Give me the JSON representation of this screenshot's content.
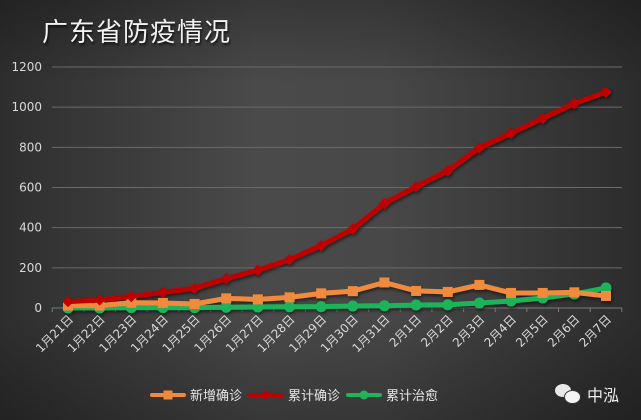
{
  "title": "广东省防疫情况",
  "watermark": {
    "icon": "wechat-icon",
    "text": "中泓"
  },
  "colors": {
    "new_confirmed": "#f08a3c",
    "total_confirmed": "#c00000",
    "total_recovered": "#1fb35a",
    "grid": "#6a6a6a",
    "text": "#d9d9d9"
  },
  "legend": [
    {
      "label": "新增确诊",
      "color": "#f08a3c",
      "marker": "square"
    },
    {
      "label": "累计确诊",
      "color": "#c00000",
      "marker": "diamond"
    },
    {
      "label": "累计治愈",
      "color": "#1fb35a",
      "marker": "circle"
    }
  ],
  "chart_data": {
    "type": "line",
    "title": "广东省防疫情况",
    "xlabel": "",
    "ylabel": "",
    "ylim": [
      0,
      1200
    ],
    "yticks": [
      0,
      200,
      400,
      600,
      800,
      1000,
      1200
    ],
    "grid": true,
    "legend_position": "bottom",
    "categories": [
      "1月21日",
      "1月22日",
      "1月23日",
      "1月24日",
      "1月25日",
      "1月26日",
      "1月27日",
      "1月28日",
      "1月29日",
      "1月30日",
      "1月31日",
      "2月1日",
      "2月2日",
      "2月3日",
      "2月4日",
      "2月5日",
      "2月6日",
      "2月7日"
    ],
    "series": [
      {
        "name": "新增确诊",
        "color": "#f08a3c",
        "marker": "square",
        "values": [
          12,
          12,
          26,
          25,
          20,
          48,
          43,
          53,
          73,
          84,
          127,
          85,
          80,
          115,
          75,
          75,
          78,
          60
        ]
      },
      {
        "name": "累计确诊",
        "color": "#c00000",
        "marker": "diamond",
        "values": [
          32,
          40,
          57,
          78,
          98,
          146,
          188,
          241,
          311,
          393,
          520,
          604,
          683,
          797,
          870,
          944,
          1018,
          1075
        ]
      },
      {
        "name": "累计治愈",
        "color": "#1fb35a",
        "marker": "circle",
        "values": [
          0,
          0,
          2,
          2,
          2,
          4,
          5,
          6,
          7,
          10,
          11,
          15,
          16,
          25,
          35,
          50,
          70,
          100
        ]
      }
    ]
  }
}
